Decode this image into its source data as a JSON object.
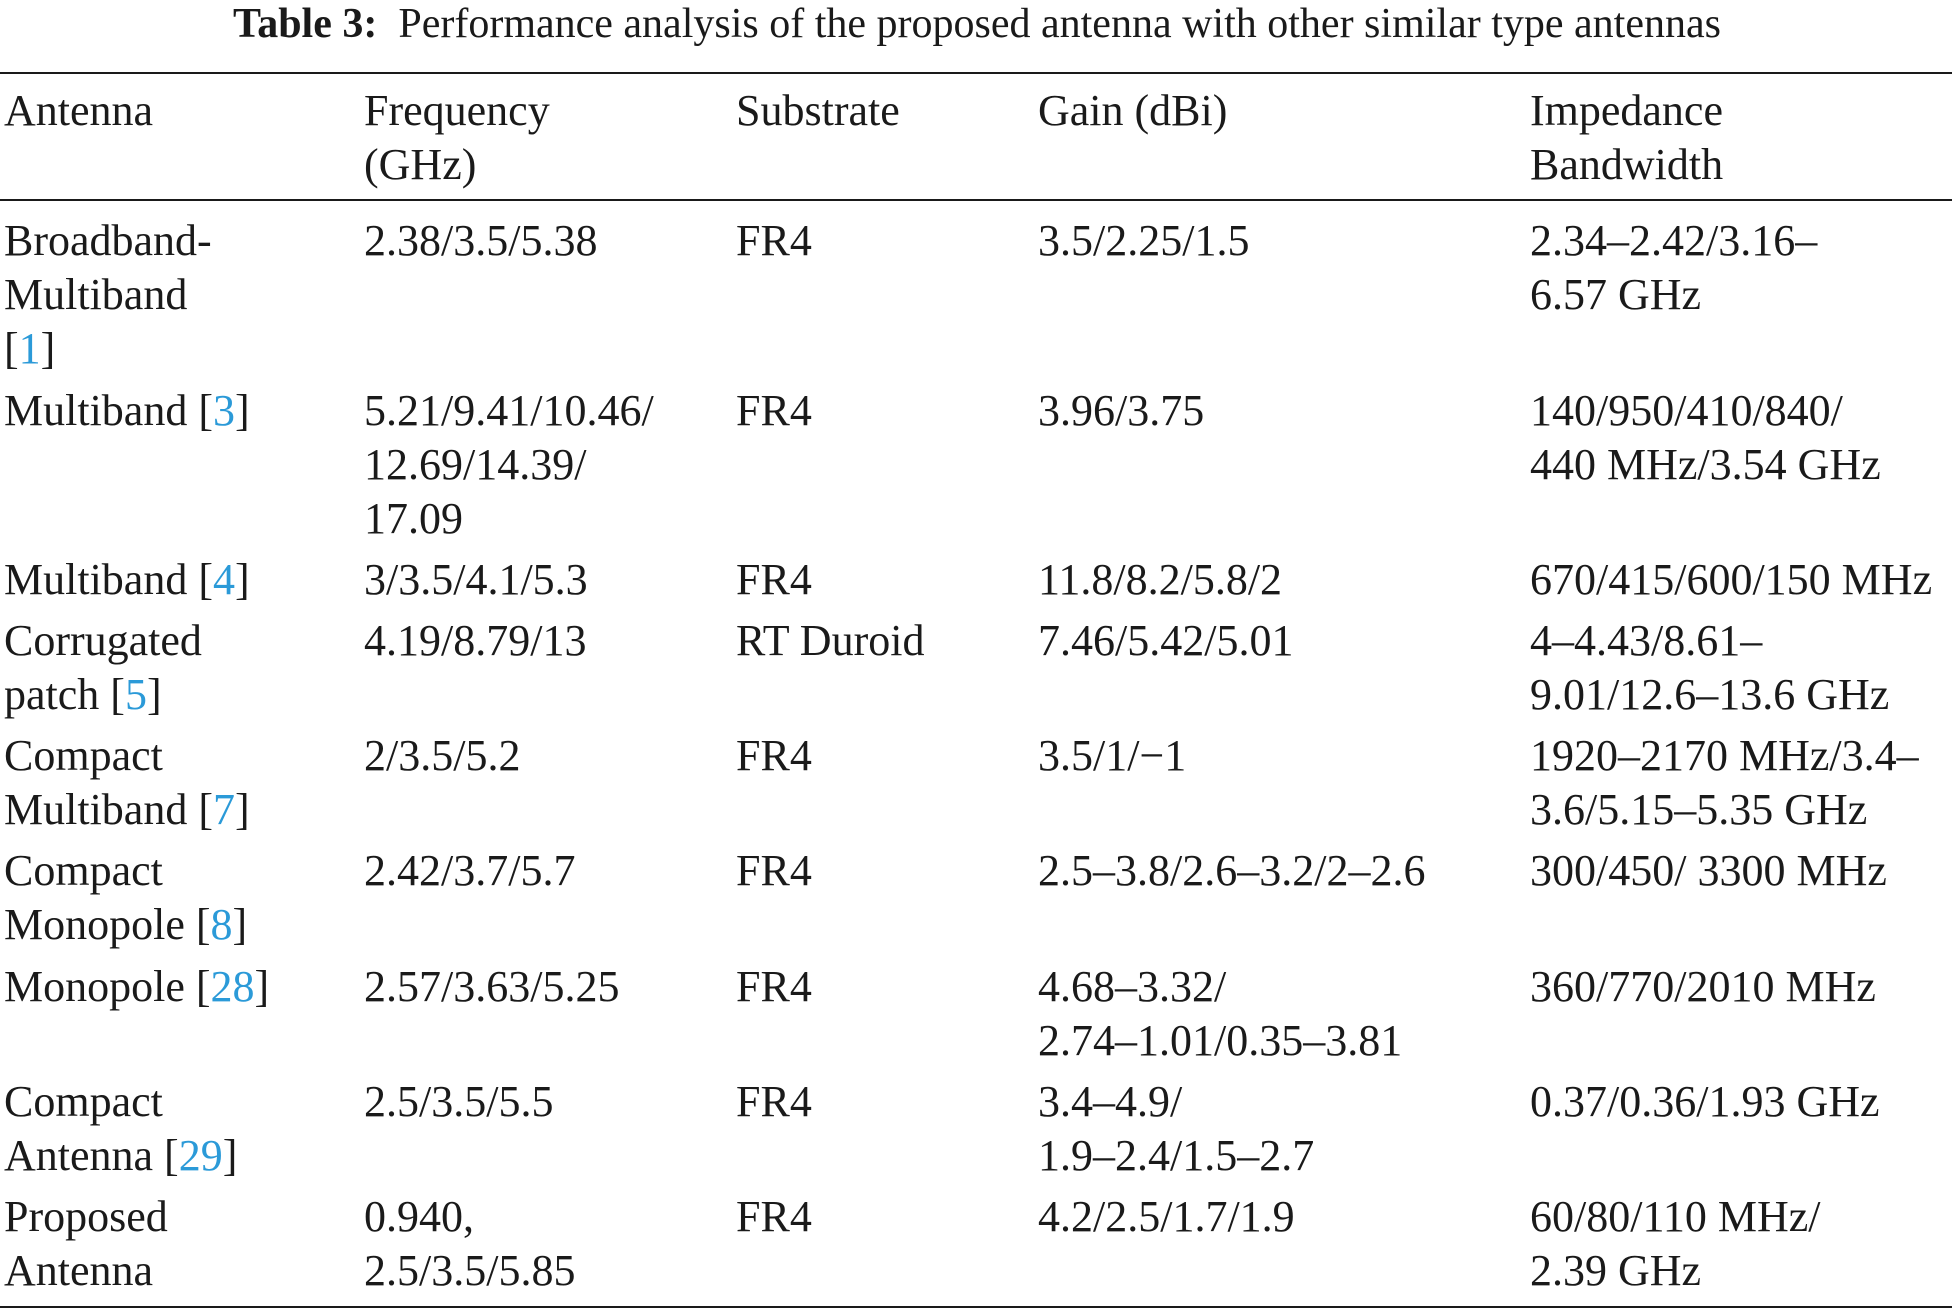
{
  "caption": {
    "label": "Table 3:",
    "text": "Performance analysis of the proposed antenna with other similar type antennas"
  },
  "header": {
    "antenna": [
      "Antenna"
    ],
    "frequency": [
      "Frequency",
      "(GHz)"
    ],
    "substrate": [
      "Substrate"
    ],
    "gain": [
      "Gain (dBi)"
    ],
    "bandwidth": [
      "Impedance",
      "Bandwidth"
    ]
  },
  "rows": [
    {
      "antenna": [
        [
          "Broadband-"
        ],
        [
          "Multiband"
        ],
        [
          "[",
          "1",
          "]"
        ]
      ],
      "frequency": [
        "2.38/3.5/5.38"
      ],
      "substrate": [
        "FR4"
      ],
      "gain": [
        "3.5/2.25/1.5"
      ],
      "bandwidth": [
        "2.34–2.42/3.16–",
        "6.57 GHz"
      ]
    },
    {
      "antenna": [
        [
          "Multiband [",
          "3",
          "]"
        ]
      ],
      "frequency": [
        "5.21/9.41/10.46/",
        "12.69/14.39/",
        "17.09"
      ],
      "substrate": [
        "FR4"
      ],
      "gain": [
        "3.96/3.75"
      ],
      "bandwidth": [
        "140/950/410/840/",
        "440 MHz/3.54 GHz"
      ]
    },
    {
      "antenna": [
        [
          "Multiband [",
          "4",
          "]"
        ]
      ],
      "frequency": [
        "3/3.5/4.1/5.3"
      ],
      "substrate": [
        "FR4"
      ],
      "gain": [
        "11.8/8.2/5.8/2"
      ],
      "bandwidth": [
        "670/415/600/150 MHz"
      ]
    },
    {
      "antenna": [
        [
          "Corrugated"
        ],
        [
          "patch [",
          "5",
          "]"
        ]
      ],
      "frequency": [
        "4.19/8.79/13"
      ],
      "substrate": [
        "RT Duroid"
      ],
      "gain": [
        "7.46/5.42/5.01"
      ],
      "bandwidth": [
        "4–4.43/8.61–",
        "9.01/12.6–13.6 GHz"
      ]
    },
    {
      "antenna": [
        [
          "Compact"
        ],
        [
          "Multiband [",
          "7",
          "]"
        ]
      ],
      "frequency": [
        "2/3.5/5.2"
      ],
      "substrate": [
        "FR4"
      ],
      "gain": [
        "3.5/1/−1"
      ],
      "bandwidth": [
        "1920–2170 MHz/3.4–",
        "3.6/5.15–5.35 GHz"
      ]
    },
    {
      "antenna": [
        [
          "Compact"
        ],
        [
          "Monopole [",
          "8",
          "]"
        ]
      ],
      "frequency": [
        "2.42/3.7/5.7"
      ],
      "substrate": [
        "FR4"
      ],
      "gain": [
        "2.5–3.8/2.6–3.2/2–2.6"
      ],
      "bandwidth": [
        "300/450/ 3300 MHz"
      ]
    },
    {
      "antenna": [
        [
          "Monopole [",
          "28",
          "]"
        ]
      ],
      "frequency": [
        "2.57/3.63/5.25"
      ],
      "substrate": [
        "FR4"
      ],
      "gain": [
        "4.68–3.32/",
        "2.74–1.01/0.35–3.81"
      ],
      "bandwidth": [
        "360/770/2010 MHz"
      ]
    },
    {
      "antenna": [
        [
          "Compact"
        ],
        [
          "Antenna [",
          "29",
          "]"
        ]
      ],
      "frequency": [
        "2.5/3.5/5.5"
      ],
      "substrate": [
        "FR4"
      ],
      "gain": [
        "3.4–4.9/",
        "1.9–2.4/1.5–2.7"
      ],
      "bandwidth": [
        "0.37/0.36/1.93 GHz"
      ]
    },
    {
      "antenna": [
        [
          "Proposed"
        ],
        [
          "Antenna"
        ]
      ],
      "frequency": [
        "0.940,",
        "2.5/3.5/5.85"
      ],
      "substrate": [
        "FR4"
      ],
      "gain": [
        "4.2/2.5/1.7/1.9"
      ],
      "bandwidth": [
        "60/80/110 MHz/",
        "2.39 GHz"
      ]
    }
  ]
}
